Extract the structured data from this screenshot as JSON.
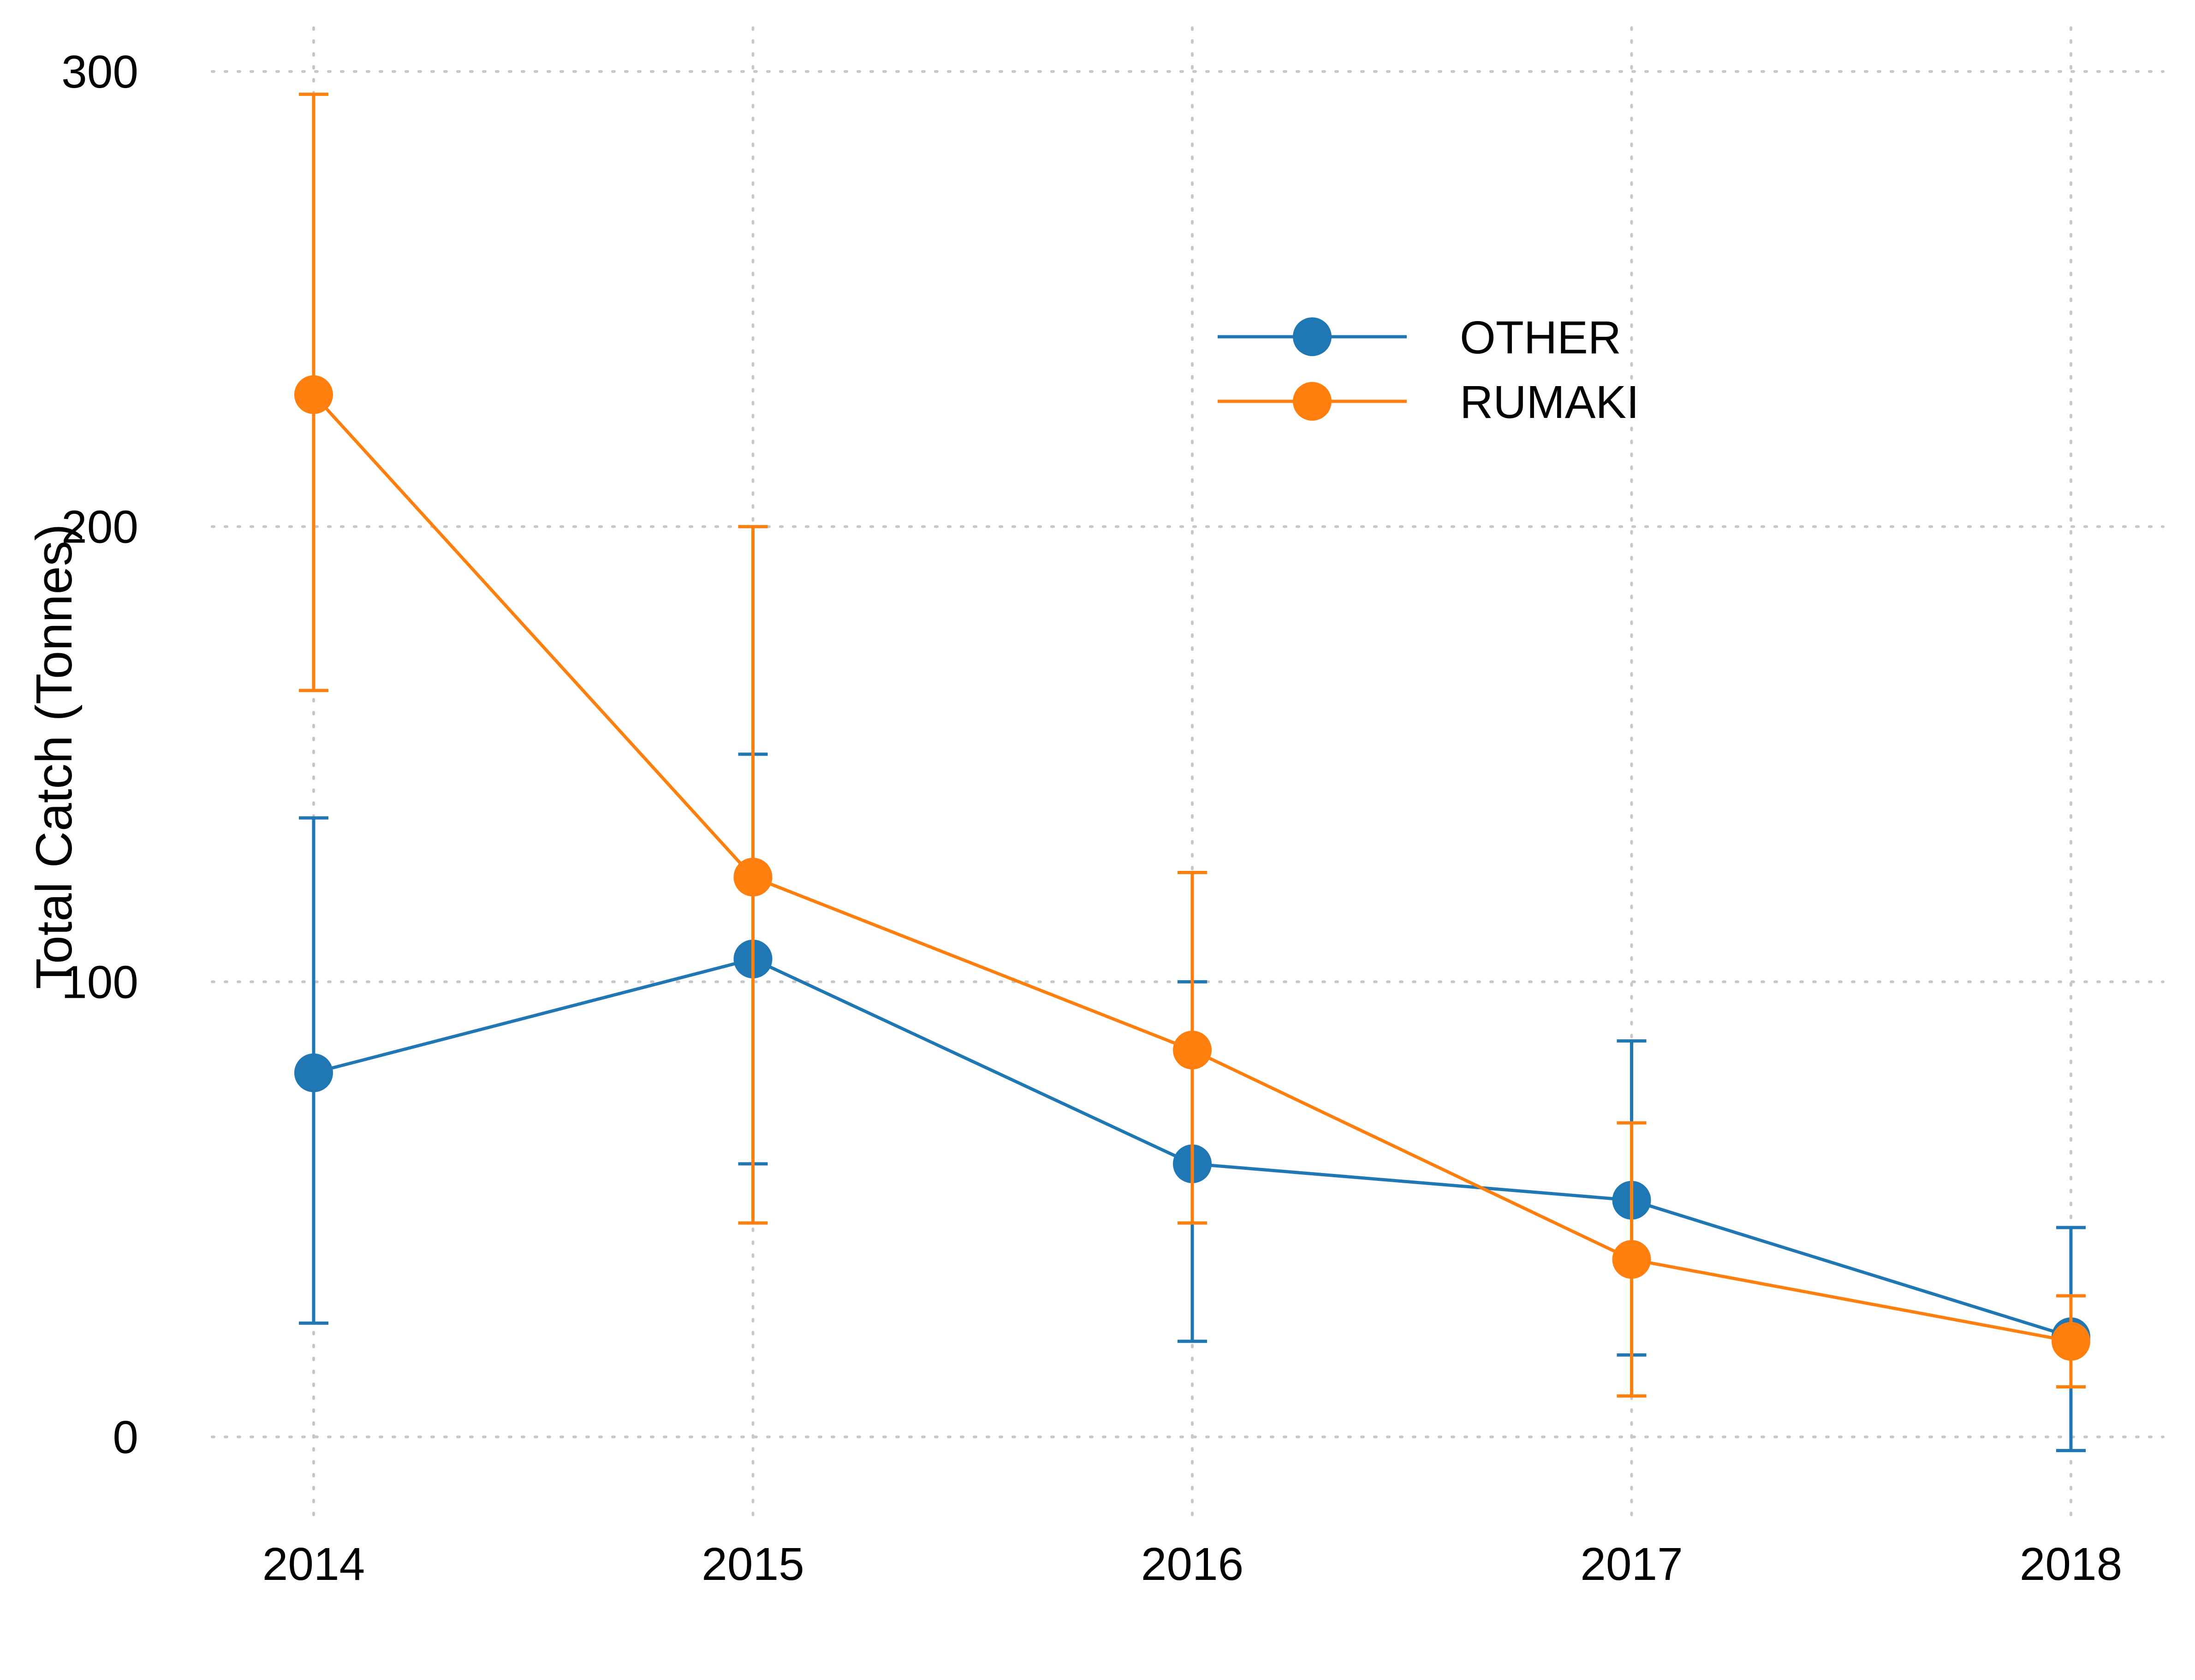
{
  "chart_data": {
    "type": "line",
    "title": "",
    "xlabel": "",
    "ylabel": "Total Catch (Tonnes)",
    "x": [
      "2014",
      "2015",
      "2016",
      "2017",
      "2018"
    ],
    "yticks": [
      "0",
      "100",
      "200",
      "300"
    ],
    "ylim": [
      -20,
      305
    ],
    "grid": true,
    "legend_position": "top-center",
    "series": [
      {
        "name": "OTHER",
        "color": "#1f77b4",
        "values": [
          80,
          105,
          60,
          52,
          22
        ],
        "err_low": [
          25,
          60,
          21,
          18,
          -3
        ],
        "err_high": [
          136,
          150,
          100,
          87,
          46
        ]
      },
      {
        "name": "RUMAKI",
        "color": "#ff7f0e",
        "values": [
          229,
          123,
          85,
          39,
          21
        ],
        "err_low": [
          164,
          47,
          47,
          9,
          11
        ],
        "err_high": [
          295,
          200,
          124,
          69,
          31
        ]
      }
    ]
  }
}
